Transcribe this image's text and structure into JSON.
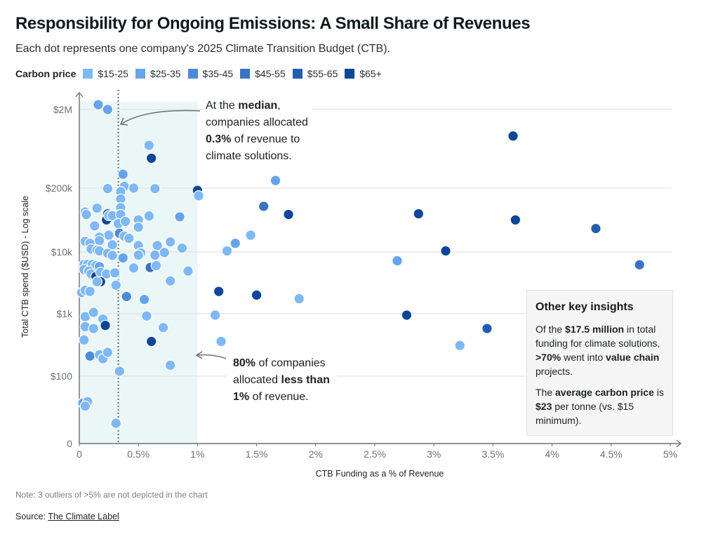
{
  "header": {
    "title": "Responsibility for Ongoing Emissions: A Small Share of Revenues",
    "subtitle": "Each dot represents one company's 2025 Climate Transition Budget (CTB)."
  },
  "legend": {
    "title": "Carbon price",
    "items": [
      {
        "label": "$15-25",
        "color": "#7db8f8"
      },
      {
        "label": "$25-35",
        "color": "#64a4ee"
      },
      {
        "label": "$35-45",
        "color": "#4c8bdb"
      },
      {
        "label": "$45-55",
        "color": "#3774c6"
      },
      {
        "label": "$55-65",
        "color": "#1f5fb3"
      },
      {
        "label": "$65+",
        "color": "#0a469b"
      }
    ]
  },
  "annotations": {
    "median": {
      "pre": "At the ",
      "bold1": "median",
      "mid1": ",",
      "line2": "companies allocated",
      "bold2": "0.3%",
      "mid2": " of revenue to",
      "line4": "climate solutions."
    },
    "less_than_1": {
      "bold1": "80%",
      "mid1": " of companies",
      "pre2": "allocated ",
      "bold2": "less than",
      "bold3": "1%",
      "mid3": " of revenue."
    }
  },
  "insights": {
    "heading": "Other key insights",
    "p1": {
      "pre": "Of the ",
      "b1": "$17.5 million",
      "mid1": " in total funding for climate solutions, ",
      "b2": ">70%",
      "mid2": " went into ",
      "b3": "value chain",
      "post": " projects."
    },
    "p2": {
      "pre": "The ",
      "b1": "average carbon price",
      "mid1": " is ",
      "b2": "$23",
      "post": " per tonne (vs. $15 minimum)."
    }
  },
  "footer": {
    "note": "Note: 3 outliers of >5% are not depicted in the chart",
    "source_label": "Source: ",
    "source_link": "The Climate Label"
  },
  "chart_data": {
    "type": "scatter",
    "title": "Responsibility for Ongoing Emissions: A Small Share of Revenues",
    "xlabel": "CTB Funding as a % of Revenue",
    "ylabel": "Total CTB spend ($USD) - Log scale",
    "xlim": [
      0,
      5
    ],
    "x_ticks": [
      {
        "v": 0,
        "label": "0"
      },
      {
        "v": 0.5,
        "label": "0.5%"
      },
      {
        "v": 1,
        "label": "1%"
      },
      {
        "v": 1.5,
        "label": "1.5%"
      },
      {
        "v": 2,
        "label": "2%"
      },
      {
        "v": 2.5,
        "label": "2.5%"
      },
      {
        "v": 3,
        "label": "3%"
      },
      {
        "v": 3.5,
        "label": "3.5%"
      },
      {
        "v": 4,
        "label": "4%"
      },
      {
        "v": 4.5,
        "label": "4.5%"
      },
      {
        "v": 5,
        "label": "5%"
      }
    ],
    "y_ticks": [
      {
        "v": 0,
        "label": "0"
      },
      {
        "v": 100,
        "label": "$100"
      },
      {
        "v": 1000,
        "label": "$1k"
      },
      {
        "v": 10000,
        "label": "$10k"
      },
      {
        "v": 200000,
        "label": "$200k"
      },
      {
        "v": 2000000,
        "label": "$2M"
      }
    ],
    "grid": true,
    "median_x": 0.33,
    "shaded_region_x": [
      0,
      1
    ],
    "legend_position": "top-left",
    "series_note": "c = carbon price bucket index into legend.items",
    "points": [
      {
        "x": 0.16,
        "y": 2300000,
        "c": 1
      },
      {
        "x": 0.24,
        "y": 2000000,
        "c": 1
      },
      {
        "x": 0.59,
        "y": 700000,
        "c": 0
      },
      {
        "x": 0.61,
        "y": 480000,
        "c": 5
      },
      {
        "x": 0.37,
        "y": 300000,
        "c": 1
      },
      {
        "x": 0.38,
        "y": 210000,
        "c": 0
      },
      {
        "x": 0.24,
        "y": 195000,
        "c": 0
      },
      {
        "x": 0.46,
        "y": 200000,
        "c": 0
      },
      {
        "x": 0.64,
        "y": 195000,
        "c": 0
      },
      {
        "x": 0.35,
        "y": 170000,
        "c": 0
      },
      {
        "x": 0.35,
        "y": 120000,
        "c": 0
      },
      {
        "x": 1.0,
        "y": 180000,
        "c": 5
      },
      {
        "x": 1.01,
        "y": 140000,
        "c": 0
      },
      {
        "x": 0.05,
        "y": 65000,
        "c": 0
      },
      {
        "x": 0.06,
        "y": 58000,
        "c": 0
      },
      {
        "x": 0.15,
        "y": 78000,
        "c": 0
      },
      {
        "x": 0.24,
        "y": 60000,
        "c": 4
      },
      {
        "x": 0.23,
        "y": 45000,
        "c": 5
      },
      {
        "x": 0.25,
        "y": 55000,
        "c": 0
      },
      {
        "x": 0.28,
        "y": 55000,
        "c": 0
      },
      {
        "x": 0.35,
        "y": 80000,
        "c": 0
      },
      {
        "x": 0.35,
        "y": 58000,
        "c": 0
      },
      {
        "x": 0.33,
        "y": 38000,
        "c": 0
      },
      {
        "x": 0.39,
        "y": 42000,
        "c": 0
      },
      {
        "x": 0.13,
        "y": 34000,
        "c": 0
      },
      {
        "x": 0.5,
        "y": 45000,
        "c": 0
      },
      {
        "x": 0.59,
        "y": 54000,
        "c": 0
      },
      {
        "x": 0.5,
        "y": 32000,
        "c": 0
      },
      {
        "x": 0.85,
        "y": 52000,
        "c": 1
      },
      {
        "x": 0.34,
        "y": 24000,
        "c": 2
      },
      {
        "x": 0.38,
        "y": 21000,
        "c": 0
      },
      {
        "x": 0.42,
        "y": 19000,
        "c": 0
      },
      {
        "x": 0.25,
        "y": 22000,
        "c": 0
      },
      {
        "x": 0.17,
        "y": 20000,
        "c": 0
      },
      {
        "x": 0.17,
        "y": 17000,
        "c": 0
      },
      {
        "x": 0.05,
        "y": 16500,
        "c": 0
      },
      {
        "x": 0.09,
        "y": 15000,
        "c": 0
      },
      {
        "x": 0.28,
        "y": 14000,
        "c": 0
      },
      {
        "x": 0.5,
        "y": 13500,
        "c": 0
      },
      {
        "x": 0.66,
        "y": 13500,
        "c": 0
      },
      {
        "x": 0.77,
        "y": 16000,
        "c": 0
      },
      {
        "x": 0.87,
        "y": 12000,
        "c": 0
      },
      {
        "x": 0.1,
        "y": 11500,
        "c": 0
      },
      {
        "x": 0.15,
        "y": 11000,
        "c": 0
      },
      {
        "x": 0.17,
        "y": 10500,
        "c": 0
      },
      {
        "x": 0.24,
        "y": 9500,
        "c": 0
      },
      {
        "x": 0.28,
        "y": 8800,
        "c": 0
      },
      {
        "x": 0.37,
        "y": 8000,
        "c": 1
      },
      {
        "x": 0.52,
        "y": 9700,
        "c": 0
      },
      {
        "x": 0.5,
        "y": 8900,
        "c": 0
      },
      {
        "x": 0.64,
        "y": 8900,
        "c": 0
      },
      {
        "x": 0.72,
        "y": 9800,
        "c": 0
      },
      {
        "x": 0.04,
        "y": 6300,
        "c": 0
      },
      {
        "x": 0.07,
        "y": 6300,
        "c": 0
      },
      {
        "x": 0.11,
        "y": 6300,
        "c": 0
      },
      {
        "x": 0.14,
        "y": 6000,
        "c": 0
      },
      {
        "x": 0.17,
        "y": 5800,
        "c": 1
      },
      {
        "x": 0.04,
        "y": 5200,
        "c": 0
      },
      {
        "x": 0.08,
        "y": 4900,
        "c": 0
      },
      {
        "x": 0.1,
        "y": 4400,
        "c": 0
      },
      {
        "x": 0.14,
        "y": 4000,
        "c": 5
      },
      {
        "x": 0.18,
        "y": 4700,
        "c": 0
      },
      {
        "x": 0.23,
        "y": 4400,
        "c": 0
      },
      {
        "x": 0.3,
        "y": 4600,
        "c": 0
      },
      {
        "x": 0.18,
        "y": 3300,
        "c": 5
      },
      {
        "x": 0.15,
        "y": 3300,
        "c": 0
      },
      {
        "x": 0.31,
        "y": 2900,
        "c": 0
      },
      {
        "x": 0.46,
        "y": 5500,
        "c": 0
      },
      {
        "x": 0.6,
        "y": 5600,
        "c": 3
      },
      {
        "x": 0.65,
        "y": 6000,
        "c": 0
      },
      {
        "x": 0.92,
        "y": 4900,
        "c": 0
      },
      {
        "x": 0.77,
        "y": 3400,
        "c": 0
      },
      {
        "x": 0.4,
        "y": 1900,
        "c": 2
      },
      {
        "x": 0.55,
        "y": 1700,
        "c": 1
      },
      {
        "x": 0.02,
        "y": 2200,
        "c": 0
      },
      {
        "x": 0.05,
        "y": 2400,
        "c": 0
      },
      {
        "x": 0.09,
        "y": 2300,
        "c": 0
      },
      {
        "x": 0.05,
        "y": 900,
        "c": 0
      },
      {
        "x": 0.12,
        "y": 1050,
        "c": 0
      },
      {
        "x": 0.2,
        "y": 820,
        "c": 0
      },
      {
        "x": 0.22,
        "y": 650,
        "c": 5
      },
      {
        "x": 0.05,
        "y": 620,
        "c": 0
      },
      {
        "x": 0.12,
        "y": 580,
        "c": 0
      },
      {
        "x": 0.04,
        "y": 380,
        "c": 0
      },
      {
        "x": 0.57,
        "y": 920,
        "c": 0
      },
      {
        "x": 0.61,
        "y": 360,
        "c": 5
      },
      {
        "x": 0.71,
        "y": 600,
        "c": 0
      },
      {
        "x": 0.09,
        "y": 210,
        "c": 2
      },
      {
        "x": 0.17,
        "y": 220,
        "c": 0
      },
      {
        "x": 0.2,
        "y": 190,
        "c": 0
      },
      {
        "x": 0.24,
        "y": 240,
        "c": 0
      },
      {
        "x": 0.77,
        "y": 150,
        "c": 0
      },
      {
        "x": 0.34,
        "y": 120,
        "c": 0
      },
      {
        "x": 0.03,
        "y": 40,
        "c": 1
      },
      {
        "x": 0.07,
        "y": 42,
        "c": 0
      },
      {
        "x": 0.05,
        "y": 36,
        "c": 0
      },
      {
        "x": 0.31,
        "y": 20,
        "c": 0
      },
      {
        "x": 1.66,
        "y": 250000,
        "c": 1
      },
      {
        "x": 1.56,
        "y": 85000,
        "c": 3
      },
      {
        "x": 1.77,
        "y": 58000,
        "c": 5
      },
      {
        "x": 1.45,
        "y": 22000,
        "c": 0
      },
      {
        "x": 1.32,
        "y": 15000,
        "c": 1
      },
      {
        "x": 1.25,
        "y": 10500,
        "c": 0
      },
      {
        "x": 1.18,
        "y": 2300,
        "c": 5
      },
      {
        "x": 1.5,
        "y": 2000,
        "c": 5
      },
      {
        "x": 1.86,
        "y": 1750,
        "c": 0
      },
      {
        "x": 1.15,
        "y": 950,
        "c": 0
      },
      {
        "x": 1.2,
        "y": 360,
        "c": 0
      },
      {
        "x": 3.67,
        "y": 920000,
        "c": 5
      },
      {
        "x": 2.87,
        "y": 60000,
        "c": 5
      },
      {
        "x": 3.69,
        "y": 45000,
        "c": 5
      },
      {
        "x": 4.37,
        "y": 30000,
        "c": 4
      },
      {
        "x": 3.1,
        "y": 10500,
        "c": 5
      },
      {
        "x": 2.69,
        "y": 7200,
        "c": 1
      },
      {
        "x": 4.74,
        "y": 6200,
        "c": 3
      },
      {
        "x": 2.77,
        "y": 950,
        "c": 5
      },
      {
        "x": 3.45,
        "y": 580,
        "c": 4
      },
      {
        "x": 3.22,
        "y": 310,
        "c": 0
      }
    ]
  }
}
